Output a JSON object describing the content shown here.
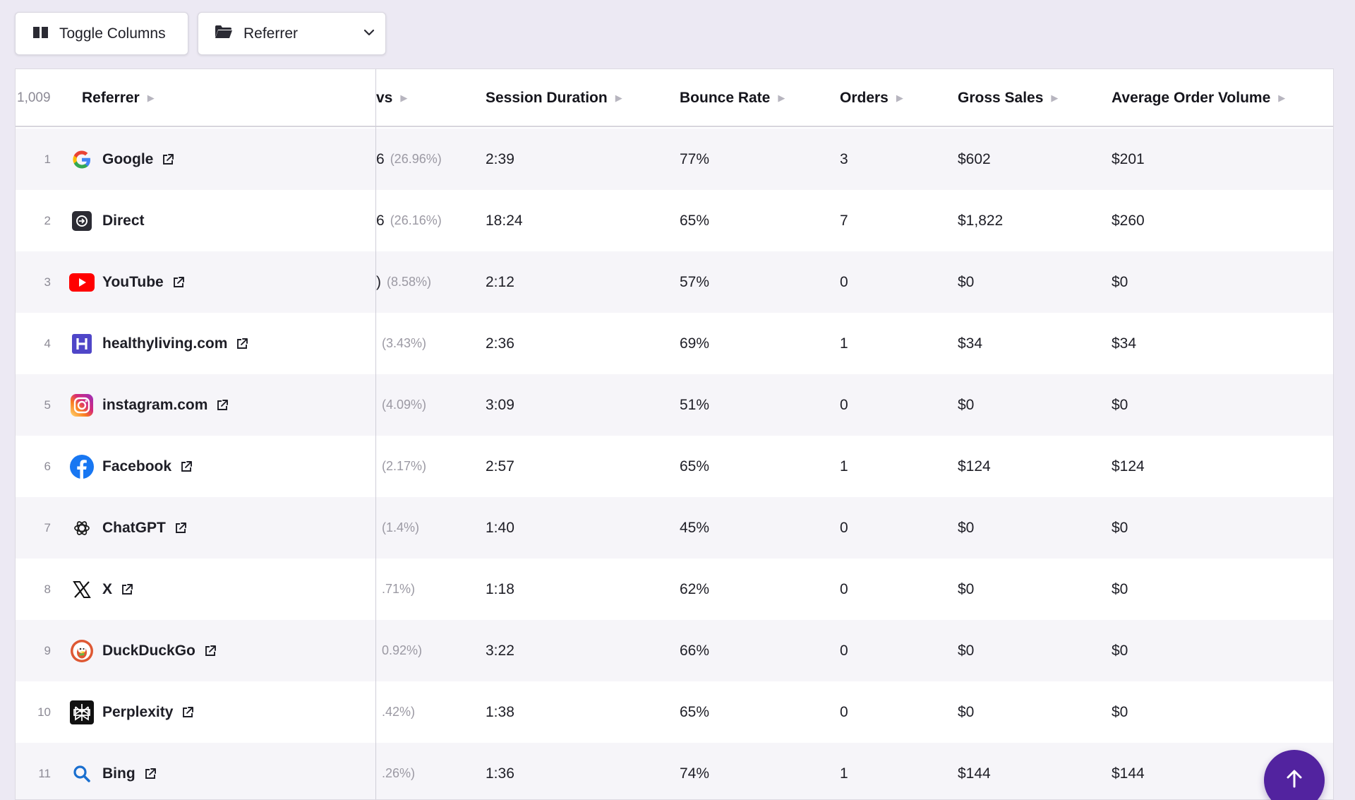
{
  "toolbar": {
    "toggle_label": "Toggle Columns",
    "dimension_label": "Referrer"
  },
  "table": {
    "count": "1,009",
    "headers": {
      "referrer": "Referrer",
      "visitors_partial": "vs",
      "session_duration": "Session Duration",
      "bounce_rate": "Bounce Rate",
      "orders": "Orders",
      "gross_sales": "Gross Sales",
      "avg_order_volume": "Average Order Volume"
    },
    "rows": [
      {
        "rank": "1",
        "name": "Google",
        "icon": "google-icon",
        "visitors": "6",
        "pct": "(26.96%)",
        "duration": "2:39",
        "bounce": "77%",
        "orders": "3",
        "sales": "$602",
        "aov": "$201"
      },
      {
        "rank": "2",
        "name": "Direct",
        "icon": "direct-icon",
        "visitors": "6",
        "pct": "(26.16%)",
        "duration": "18:24",
        "bounce": "65%",
        "orders": "7",
        "sales": "$1,822",
        "aov": "$260"
      },
      {
        "rank": "3",
        "name": "YouTube",
        "icon": "youtube-icon",
        "visitors": ")",
        "pct": "(8.58%)",
        "duration": "2:12",
        "bounce": "57%",
        "orders": "0",
        "sales": "$0",
        "aov": "$0"
      },
      {
        "rank": "4",
        "name": "healthyliving.com",
        "icon": "healthyliving-icon",
        "visitors": "",
        "pct": "(3.43%)",
        "duration": "2:36",
        "bounce": "69%",
        "orders": "1",
        "sales": "$34",
        "aov": "$34"
      },
      {
        "rank": "5",
        "name": "instagram.com",
        "icon": "instagram-icon",
        "visitors": "",
        "pct": "(4.09%)",
        "duration": "3:09",
        "bounce": "51%",
        "orders": "0",
        "sales": "$0",
        "aov": "$0"
      },
      {
        "rank": "6",
        "name": "Facebook",
        "icon": "facebook-icon",
        "visitors": "",
        "pct": "(2.17%)",
        "duration": "2:57",
        "bounce": "65%",
        "orders": "1",
        "sales": "$124",
        "aov": "$124"
      },
      {
        "rank": "7",
        "name": "ChatGPT",
        "icon": "chatgpt-icon",
        "visitors": "",
        "pct": "(1.4%)",
        "duration": "1:40",
        "bounce": "45%",
        "orders": "0",
        "sales": "$0",
        "aov": "$0"
      },
      {
        "rank": "8",
        "name": "X",
        "icon": "x-icon",
        "visitors": "",
        "pct": ".71%)",
        "duration": "1:18",
        "bounce": "62%",
        "orders": "0",
        "sales": "$0",
        "aov": "$0"
      },
      {
        "rank": "9",
        "name": "DuckDuckGo",
        "icon": "duckduckgo-icon",
        "visitors": "",
        "pct": "0.92%)",
        "duration": "3:22",
        "bounce": "66%",
        "orders": "0",
        "sales": "$0",
        "aov": "$0"
      },
      {
        "rank": "10",
        "name": "Perplexity",
        "icon": "perplexity-icon",
        "visitors": "",
        "pct": ".42%)",
        "duration": "1:38",
        "bounce": "65%",
        "orders": "0",
        "sales": "$0",
        "aov": "$0"
      },
      {
        "rank": "11",
        "name": "Bing",
        "icon": "bing-icon",
        "visitors": "",
        "pct": ".26%)",
        "duration": "1:36",
        "bounce": "74%",
        "orders": "1",
        "sales": "$144",
        "aov": "$144"
      }
    ]
  },
  "colors": {
    "background": "#ece9f3",
    "accent": "#52239f",
    "row_alt": "#f6f5f9"
  },
  "fab": {
    "icon": "arrow-up-icon"
  }
}
